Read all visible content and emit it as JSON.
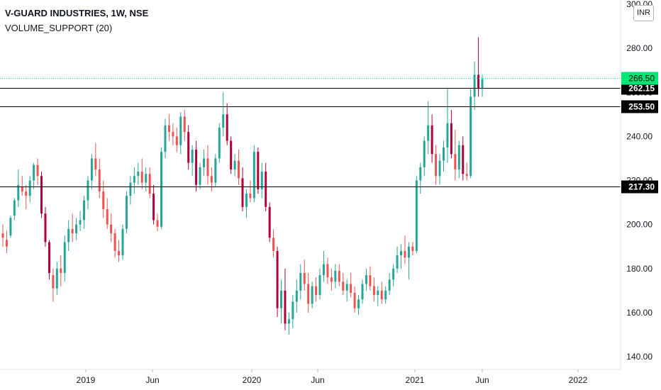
{
  "header": {
    "title": "V-GUARD INDUSTRIES, 1W, NSE",
    "indicator": "VOLUME_SUPPORT (20)"
  },
  "currency_label": "INR",
  "chart_data": {
    "type": "candlestick",
    "symbol": "V-GUARD INDUSTRIES",
    "interval": "1W",
    "exchange": "NSE",
    "y_axis": {
      "min": 140,
      "max": 300,
      "ticks": [
        140,
        160,
        180,
        200,
        220,
        240,
        260,
        280,
        300
      ],
      "tick_labels": [
        "140.00",
        "160.00",
        "180.00",
        "200.00",
        "220.00",
        "240.00",
        "260.00",
        "280.00",
        "300.00"
      ]
    },
    "x_axis": {
      "labels": [
        "2019",
        "Jun",
        "2020",
        "Jun",
        "2021",
        "Jun",
        "2022"
      ]
    },
    "last_price": 266.5,
    "horizontal_levels": [
      262.15,
      253.5,
      217.3
    ],
    "level_labels": [
      "262.15",
      "253.50",
      "217.30"
    ],
    "last_price_label": "266.50",
    "colors": {
      "up": "#26a69a",
      "down": "#ef5350",
      "down_strong": "#b2003a",
      "level_line": "#000000",
      "last_price": "#00e676"
    },
    "candles_approx_weekly": [
      [
        196,
        200,
        190,
        194
      ],
      [
        193,
        197,
        187,
        190
      ],
      [
        195,
        204,
        194,
        203
      ],
      [
        204,
        212,
        202,
        211
      ],
      [
        211,
        225,
        208,
        218
      ],
      [
        217,
        222,
        213,
        215
      ],
      [
        215,
        218,
        207,
        213
      ],
      [
        213,
        222,
        210,
        220
      ],
      [
        220,
        228,
        216,
        227
      ],
      [
        227,
        230,
        218,
        222
      ],
      [
        222,
        224,
        203,
        205
      ],
      [
        205,
        208,
        190,
        192
      ],
      [
        192,
        193,
        175,
        178
      ],
      [
        177,
        180,
        165,
        171
      ],
      [
        171,
        183,
        168,
        180
      ],
      [
        180,
        186,
        172,
        178
      ],
      [
        178,
        195,
        174,
        192
      ],
      [
        192,
        202,
        188,
        198
      ],
      [
        198,
        205,
        192,
        196
      ],
      [
        196,
        203,
        193,
        200
      ],
      [
        200,
        206,
        197,
        202
      ],
      [
        202,
        213,
        198,
        211
      ],
      [
        211,
        222,
        207,
        220
      ],
      [
        220,
        232,
        216,
        230
      ],
      [
        230,
        237,
        222,
        225
      ],
      [
        225,
        230,
        212,
        215
      ],
      [
        215,
        220,
        203,
        207
      ],
      [
        207,
        212,
        198,
        200
      ],
      [
        200,
        205,
        192,
        196
      ],
      [
        196,
        198,
        185,
        188
      ],
      [
        188,
        193,
        183,
        186
      ],
      [
        186,
        200,
        184,
        198
      ],
      [
        198,
        215,
        196,
        213
      ],
      [
        213,
        222,
        209,
        219
      ],
      [
        219,
        226,
        214,
        222
      ],
      [
        222,
        228,
        218,
        224
      ],
      [
        224,
        230,
        216,
        219
      ],
      [
        219,
        226,
        215,
        223
      ],
      [
        223,
        226,
        212,
        214
      ],
      [
        214,
        218,
        200,
        202
      ],
      [
        202,
        205,
        197,
        199
      ],
      [
        199,
        235,
        198,
        233
      ],
      [
        233,
        248,
        230,
        245
      ],
      [
        245,
        250,
        238,
        242
      ],
      [
        242,
        246,
        236,
        240
      ],
      [
        240,
        244,
        233,
        236
      ],
      [
        236,
        251,
        232,
        249
      ],
      [
        249,
        252,
        238,
        242
      ],
      [
        242,
        245,
        225,
        228
      ],
      [
        228,
        236,
        222,
        234
      ],
      [
        234,
        238,
        215,
        218
      ],
      [
        218,
        228,
        216,
        226
      ],
      [
        226,
        234,
        222,
        230
      ],
      [
        230,
        236,
        218,
        222
      ],
      [
        222,
        226,
        215,
        219
      ],
      [
        219,
        232,
        217,
        230
      ],
      [
        230,
        246,
        228,
        244
      ],
      [
        244,
        260,
        240,
        250
      ],
      [
        250,
        255,
        236,
        238
      ],
      [
        238,
        240,
        223,
        225
      ],
      [
        225,
        232,
        222,
        229
      ],
      [
        229,
        234,
        218,
        221
      ],
      [
        221,
        226,
        206,
        208
      ],
      [
        208,
        216,
        203,
        214
      ],
      [
        214,
        220,
        210,
        212
      ],
      [
        212,
        236,
        210,
        233
      ],
      [
        233,
        235,
        214,
        216
      ],
      [
        216,
        228,
        212,
        224
      ],
      [
        224,
        228,
        206,
        208
      ],
      [
        208,
        210,
        192,
        194
      ],
      [
        194,
        198,
        185,
        188
      ],
      [
        188,
        190,
        158,
        162
      ],
      [
        162,
        175,
        155,
        170
      ],
      [
        170,
        180,
        152,
        155
      ],
      [
        155,
        160,
        150,
        157
      ],
      [
        157,
        168,
        153,
        165
      ],
      [
        165,
        175,
        160,
        170
      ],
      [
        170,
        182,
        166,
        178
      ],
      [
        178,
        184,
        170,
        173
      ],
      [
        173,
        178,
        160,
        164
      ],
      [
        164,
        174,
        162,
        172
      ],
      [
        172,
        176,
        165,
        168
      ],
      [
        168,
        180,
        166,
        177
      ],
      [
        177,
        188,
        174,
        182
      ],
      [
        182,
        185,
        173,
        176
      ],
      [
        176,
        180,
        170,
        174
      ],
      [
        174,
        182,
        171,
        179
      ],
      [
        179,
        182,
        172,
        174
      ],
      [
        174,
        178,
        168,
        170
      ],
      [
        170,
        175,
        165,
        173
      ],
      [
        173,
        178,
        167,
        169
      ],
      [
        169,
        172,
        160,
        162
      ],
      [
        162,
        168,
        159,
        166
      ],
      [
        166,
        175,
        164,
        173
      ],
      [
        173,
        180,
        170,
        177
      ],
      [
        177,
        181,
        170,
        172
      ],
      [
        172,
        176,
        165,
        168
      ],
      [
        168,
        172,
        163,
        170
      ],
      [
        170,
        174,
        164,
        166
      ],
      [
        166,
        172,
        164,
        170
      ],
      [
        170,
        178,
        168,
        175
      ],
      [
        175,
        182,
        172,
        180
      ],
      [
        180,
        190,
        178,
        186
      ],
      [
        186,
        191,
        180,
        188
      ],
      [
        188,
        195,
        182,
        185
      ],
      [
        185,
        192,
        175,
        190
      ],
      [
        190,
        192,
        186,
        188
      ],
      [
        188,
        222,
        187,
        220
      ],
      [
        220,
        228,
        214,
        226
      ],
      [
        226,
        240,
        222,
        238
      ],
      [
        238,
        256,
        232,
        245
      ],
      [
        245,
        250,
        228,
        232
      ],
      [
        232,
        236,
        218,
        222
      ],
      [
        222,
        232,
        218,
        229
      ],
      [
        229,
        238,
        224,
        235
      ],
      [
        235,
        262,
        228,
        246
      ],
      [
        246,
        252,
        230,
        232
      ],
      [
        232,
        243,
        220,
        225
      ],
      [
        225,
        238,
        221,
        236
      ],
      [
        236,
        240,
        220,
        223
      ],
      [
        223,
        228,
        220,
        222
      ],
      [
        222,
        262,
        221,
        258
      ],
      [
        258,
        274,
        252,
        268
      ],
      [
        268,
        285,
        258,
        262
      ],
      [
        262,
        268,
        258,
        266
      ]
    ]
  }
}
